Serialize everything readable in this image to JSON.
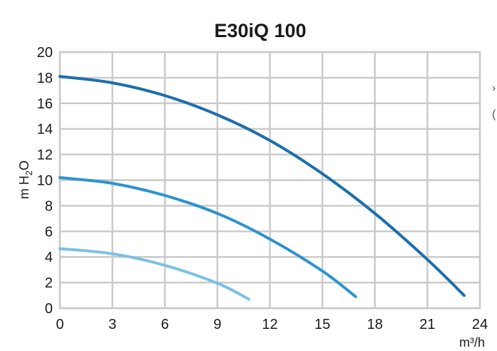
{
  "chart_data": {
    "type": "line",
    "title": "E30iQ 100",
    "xlabel": "m³/h",
    "ylabel_parts": {
      "main": "m H",
      "sub": "2",
      "tail": "O"
    },
    "xlim": [
      0,
      24
    ],
    "ylim": [
      0,
      20
    ],
    "x_ticks": [
      0,
      3,
      6,
      9,
      12,
      15,
      18,
      21,
      24
    ],
    "y_ticks": [
      0,
      2,
      4,
      6,
      8,
      10,
      12,
      14,
      16,
      18,
      20
    ],
    "grid": true,
    "series": [
      {
        "color": "#1d6fac",
        "points": [
          [
            0,
            18.1
          ],
          [
            3,
            17.6
          ],
          [
            6,
            16.6
          ],
          [
            9,
            15.1
          ],
          [
            12,
            13.1
          ],
          [
            15,
            10.5
          ],
          [
            18,
            7.4
          ],
          [
            21,
            3.8
          ],
          [
            23.1,
            1.0
          ]
        ]
      },
      {
        "color": "#2b94d0",
        "points": [
          [
            0,
            10.2
          ],
          [
            3,
            9.75
          ],
          [
            6,
            8.8
          ],
          [
            9,
            7.4
          ],
          [
            12,
            5.4
          ],
          [
            15,
            2.9
          ],
          [
            16.9,
            0.9
          ]
        ]
      },
      {
        "color": "#7bc1e4",
        "points": [
          [
            0,
            4.65
          ],
          [
            3,
            4.25
          ],
          [
            6,
            3.35
          ],
          [
            9,
            1.95
          ],
          [
            10.8,
            0.7
          ]
        ]
      }
    ]
  },
  "edge_glyphs": [
    "›",
    "("
  ]
}
